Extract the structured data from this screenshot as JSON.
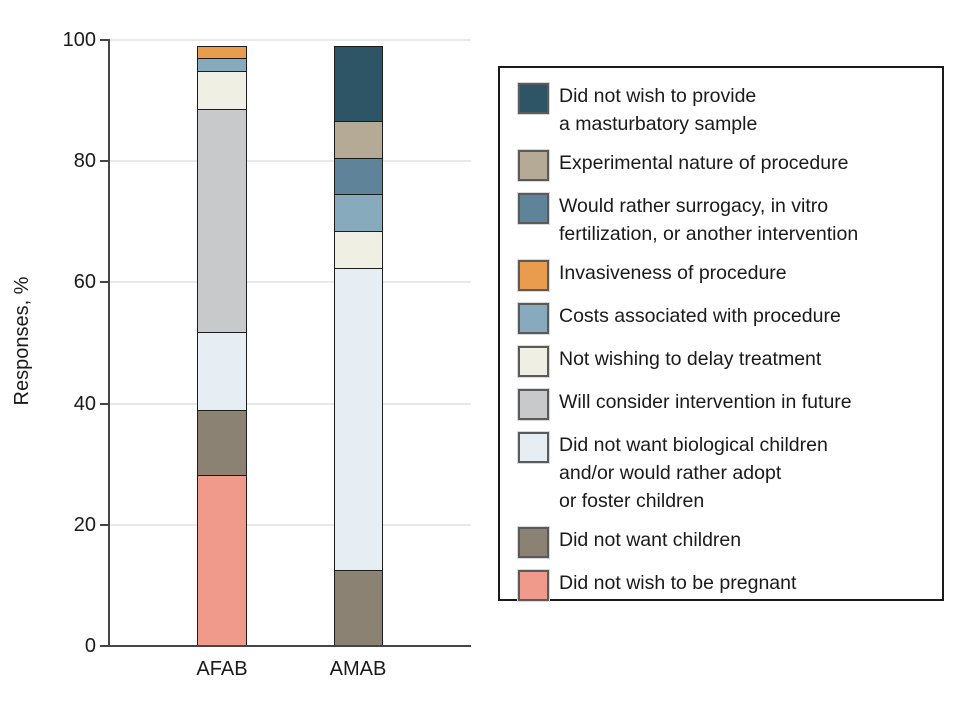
{
  "chart_data": {
    "type": "stacked-bar",
    "title": "",
    "ylabel": "Responses, %",
    "xlabel": "",
    "ylim": [
      0,
      100
    ],
    "yticks": [
      0,
      20,
      40,
      60,
      80,
      100
    ],
    "grid": "horizontal-light",
    "legend_position": "right-box",
    "categories": [
      "AFAB",
      "AMAB"
    ],
    "series": [
      {
        "name": "Did not wish to provide a masturbatory sample",
        "legend_lines": "Did not wish to provide\na masturbatory sample",
        "color": "#2E5566",
        "values": [
          0,
          12.5
        ]
      },
      {
        "name": "Experimental nature of procedure",
        "legend_lines": "Experimental nature of procedure",
        "color": "#B4AA95",
        "values": [
          0,
          6.25
        ]
      },
      {
        "name": "Would rather surrogacy, in vitro fertilization, or another intervention",
        "legend_lines": "Would rather surrogacy, in vitro\nfertilization, or another intervention",
        "color": "#5F8399",
        "values": [
          0,
          6.25
        ]
      },
      {
        "name": "Invasiveness of procedure",
        "legend_lines": "Invasiveness of procedure",
        "color": "#E99C4E",
        "values": [
          2.2,
          0
        ]
      },
      {
        "name": "Costs associated with procedure",
        "legend_lines": "Costs associated with procedure",
        "color": "#87AABD",
        "values": [
          2.2,
          6.25
        ]
      },
      {
        "name": "Not wishing to delay treatment",
        "legend_lines": "Not wishing to delay treatment",
        "color": "#F0EFE3",
        "values": [
          6.5,
          6.25
        ]
      },
      {
        "name": "Will consider intervention in future",
        "legend_lines": "Will consider intervention in future",
        "color": "#C8C9CB",
        "values": [
          37.0,
          0
        ]
      },
      {
        "name": "Did not want biological children and/or would rather adopt or foster children",
        "legend_lines": "Did not want biological children\nand/or would rather adopt\nor foster children",
        "color": "#E6EDF3",
        "values": [
          13.0,
          50
        ]
      },
      {
        "name": "Did not want children",
        "legend_lines": "Did not want children",
        "color": "#8B8273",
        "values": [
          10.9,
          12.5
        ]
      },
      {
        "name": "Did not wish to be pregnant",
        "legend_lines": "Did not wish to be pregnant",
        "color": "#F09A8B",
        "values": [
          28.2,
          0
        ]
      }
    ]
  },
  "layout_text": {
    "y_axis_title": "Responses, %",
    "x_category_1": "AFAB",
    "x_category_2": "AMAB"
  }
}
